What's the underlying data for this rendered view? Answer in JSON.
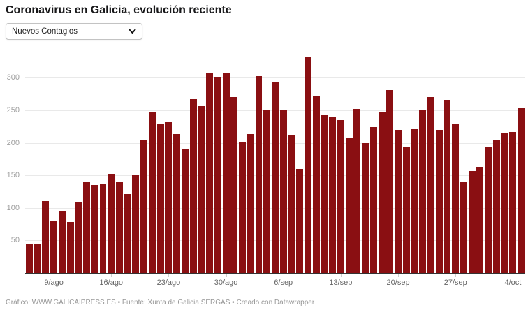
{
  "header": {
    "title": "Coronavirus en Galicia, evolución reciente",
    "dropdown": {
      "selected": "Nuevos Contagios",
      "icon": "chevron-down-icon"
    }
  },
  "chart_data": {
    "type": "bar",
    "title": "Coronavirus en Galicia, evolución reciente",
    "series_name": "Nuevos Contagios",
    "values": [
      44,
      44,
      110,
      81,
      95,
      78,
      108,
      140,
      135,
      136,
      151,
      139,
      121,
      150,
      204,
      248,
      230,
      232,
      213,
      191,
      267,
      256,
      308,
      300,
      307,
      270,
      201,
      213,
      303,
      251,
      293,
      251,
      212,
      160,
      332,
      273,
      242,
      240,
      235,
      208,
      252,
      200,
      224,
      248,
      281,
      220,
      194,
      221,
      250,
      270,
      220,
      266,
      229,
      140,
      157,
      163,
      194,
      205,
      216,
      217,
      253
    ],
    "x_tick_labels": [
      "9/ago",
      "16/ago",
      "23/ago",
      "30/ago",
      "6/sep",
      "13/sep",
      "20/sep",
      "27/sep",
      "4/oct"
    ],
    "x_tick_bar_indices": [
      3,
      10,
      17,
      24,
      31,
      38,
      45,
      52,
      59
    ],
    "y_ticks": [
      50,
      100,
      150,
      200,
      250,
      300
    ],
    "ylim": [
      0,
      345
    ],
    "grid": true,
    "legend_position": "none",
    "bar_color": "#8a0f12"
  },
  "footer": {
    "text": "Gráfico: WWW.GALICAIPRESS.ES • Fuente: Xunta de Galicia SERGAS • Creado con Datawrapper"
  },
  "colors": {
    "bar": "#8a0f12",
    "grid": "#e9e9e9",
    "axis": "#333333",
    "y_tick_label": "#9e9e9e",
    "x_tick_label": "#666666",
    "footer_text": "#979797",
    "title_text": "#18181a"
  }
}
